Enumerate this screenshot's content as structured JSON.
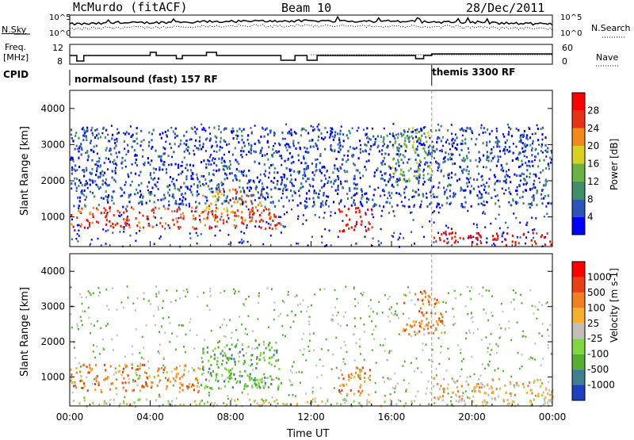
{
  "header": {
    "station": "McMurdo (fitACF)",
    "beam": "Beam 10",
    "date": "28/Dec/2011"
  },
  "noise_panel": {
    "left_label": "N.Sky",
    "right_label": "N.Search",
    "ticks": [
      "10^5",
      "10^0"
    ]
  },
  "freq_panel": {
    "left_label_1": "Freq.",
    "left_label_2": "[MHz]",
    "right_label": "Nave",
    "left_ticks": [
      "12",
      "8"
    ],
    "right_ticks": [
      "60",
      "0"
    ]
  },
  "cpid": {
    "label": "CPID",
    "mode_1": "normalsound (fast) 157 RF",
    "mode_2": "themis 3300 RF"
  },
  "x_axis": {
    "title": "Time UT",
    "ticks": [
      "00:00",
      "04:00",
      "08:00",
      "12:00",
      "16:00",
      "20:00",
      "00:00"
    ]
  },
  "chart_data": [
    {
      "type": "heatmap",
      "panel": "power",
      "ylabel": "Slant Range [km]",
      "ylim": [
        180,
        4500
      ],
      "yticks": [
        1000,
        2000,
        3000,
        4000
      ],
      "xlim_hours": [
        0,
        24
      ],
      "colorbar_label": "Power [dB]",
      "colorbar_ticks": [
        "28",
        "24",
        "20",
        "16",
        "12",
        "8",
        "4"
      ],
      "colors": [
        "#0000ff",
        "#2b55b8",
        "#3f8f6a",
        "#6bb143",
        "#d7d21f",
        "#f08a1a",
        "#e83218",
        "#ff0000"
      ],
      "regions": [
        {
          "t0": 0.0,
          "t1": 10.5,
          "r0": 700,
          "r1": 1300,
          "level": 6
        },
        {
          "t0": 6.5,
          "t1": 9.5,
          "r0": 900,
          "r1": 1800,
          "level": 5
        },
        {
          "t0": 13.3,
          "t1": 15.0,
          "r0": 600,
          "r1": 1300,
          "level": 7
        },
        {
          "t0": 18.0,
          "t1": 24.0,
          "r0": 250,
          "r1": 600,
          "level": 7
        },
        {
          "t0": 16.0,
          "t1": 18.0,
          "r0": 2000,
          "r1": 3500,
          "level": 3
        },
        {
          "t0": 0.0,
          "t1": 24.0,
          "r0": 1300,
          "r1": 3500,
          "level": 1
        }
      ]
    },
    {
      "type": "heatmap",
      "panel": "velocity",
      "ylabel": "Slant Range [km]",
      "ylim": [
        180,
        4500
      ],
      "yticks": [
        1000,
        2000,
        3000,
        4000
      ],
      "xlim_hours": [
        0,
        24
      ],
      "colorbar_label": "Velocity [m s-1]",
      "colorbar_ticks": [
        "1000",
        "500",
        "100",
        "25",
        "-25",
        "-100",
        "-500",
        "-1000"
      ],
      "colors": [
        "#2040c0",
        "#3f7f90",
        "#55b030",
        "#80d840",
        "#c0c0b8",
        "#f5b030",
        "#f08020",
        "#e84010",
        "#ff0000"
      ],
      "regions": [
        {
          "t0": 0.0,
          "t1": 6.5,
          "r0": 600,
          "r1": 1400,
          "level": 6
        },
        {
          "t0": 6.5,
          "t1": 10.5,
          "r0": 700,
          "r1": 2100,
          "level": 2
        },
        {
          "t0": 13.3,
          "t1": 15.0,
          "r0": 500,
          "r1": 1300,
          "level": 6
        },
        {
          "t0": 16.5,
          "t1": 18.5,
          "r0": 2200,
          "r1": 3500,
          "level": 6
        },
        {
          "t0": 18.0,
          "t1": 24.0,
          "r0": 400,
          "r1": 1000,
          "level": 5
        },
        {
          "t0": 0.0,
          "t1": 24.0,
          "r0": 200,
          "r1": 400,
          "level": 4
        }
      ]
    }
  ]
}
